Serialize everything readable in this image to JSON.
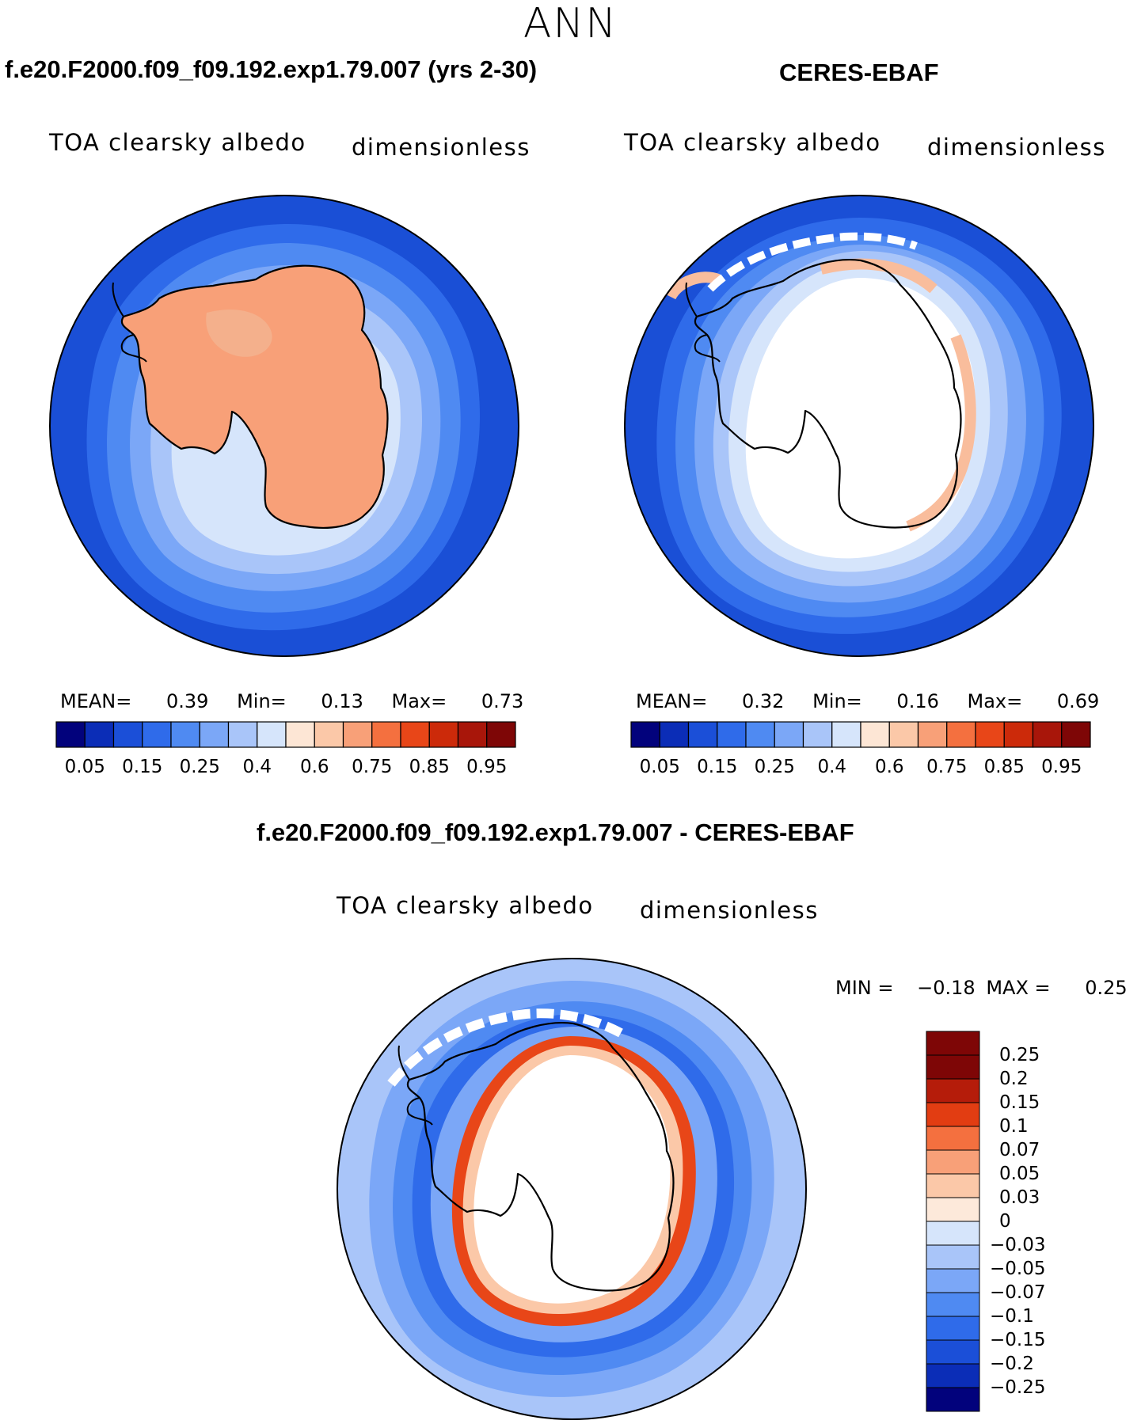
{
  "season": "ANN",
  "panels": [
    {
      "title": "f.e20.F2000.f09_f09.192.exp1.79.007 (yrs 2-30)",
      "variable": "TOA clearsky albedo",
      "units": "dimensionless",
      "stats": {
        "mean_label": "MEAN=",
        "mean": "0.39",
        "min_label": "Min=",
        "min": "0.13",
        "max_label": "Max=",
        "max": "0.73"
      }
    },
    {
      "title": "CERES-EBAF",
      "variable": "TOA clearsky albedo",
      "units": "dimensionless",
      "stats": {
        "mean_label": "MEAN=",
        "mean": "0.32",
        "min_label": "Min=",
        "min": "0.16",
        "max_label": "Max=",
        "max": "0.69"
      }
    },
    {
      "title": "f.e20.F2000.f09_f09.192.exp1.79.007 - CERES-EBAF",
      "variable": "TOA clearsky albedo",
      "units": "dimensionless",
      "stats": {
        "min_label": "MIN =",
        "min": "−0.18",
        "max_label": "MAX =",
        "max": "0.25"
      }
    }
  ],
  "colorbar_top": {
    "colors": [
      "#02027c",
      "#0b2db7",
      "#1b4fd8",
      "#2f6bea",
      "#4f8af2",
      "#7ba7f7",
      "#a9c5f9",
      "#d6e5fb",
      "#fde6d5",
      "#fbc8a8",
      "#f8a078",
      "#f4703f",
      "#e84618",
      "#cc2a0a",
      "#a8160a",
      "#7e0606"
    ],
    "labels": [
      "0.05",
      "0.15",
      "0.25",
      "0.4",
      "0.6",
      "0.75",
      "0.85",
      "0.95"
    ]
  },
  "colorbar_diff": {
    "colors": [
      "#7e0606",
      "#b51c0a",
      "#e23d12",
      "#f4703f",
      "#f8a078",
      "#fbc8a8",
      "#fde9da",
      "#d6e5fb",
      "#a9c5f9",
      "#7ba7f7",
      "#4f8af2",
      "#2f6bea",
      "#1b4fd8",
      "#0b2db7",
      "#02027c"
    ],
    "labels": [
      "0.25",
      "0.2",
      "0.15",
      "0.1",
      "0.07",
      "0.05",
      "0.03",
      "0",
      "−0.03",
      "−0.05",
      "−0.07",
      "−0.1",
      "−0.15",
      "−0.2",
      "−0.25"
    ]
  }
}
